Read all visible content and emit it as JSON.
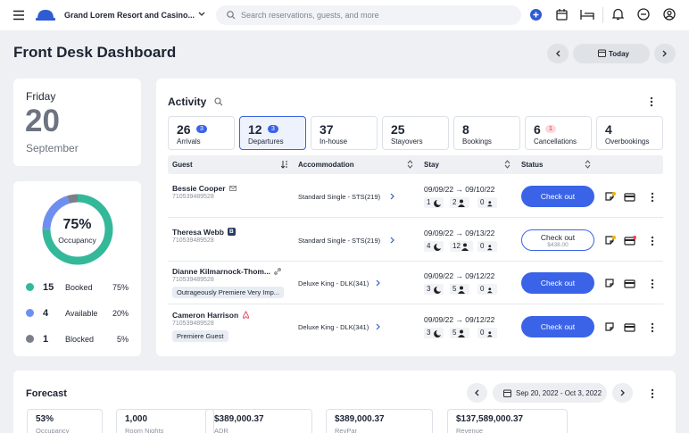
{
  "header": {
    "hotel": "Grand Lorem Resort and Casino...",
    "search_placeholder": "Search reservations, guests, and more"
  },
  "page": {
    "title": "Front Desk Dashboard",
    "today_button": "Today"
  },
  "date_card": {
    "weekday": "Friday",
    "day": "20",
    "month": "September"
  },
  "occupancy": {
    "percent": "75%",
    "label": "Occupancy",
    "legend": [
      {
        "count": 15,
        "label": "Booked",
        "percent": "75%",
        "color": "#34b89a"
      },
      {
        "count": 4,
        "label": "Available",
        "percent": "20%",
        "color": "#6f8ff0"
      },
      {
        "count": 1,
        "label": "Blocked",
        "percent": "5%",
        "color": "#7b7f87"
      }
    ]
  },
  "activity": {
    "title": "Activity",
    "tabs": [
      {
        "count": 26,
        "badge": 3,
        "label": "Arrivals"
      },
      {
        "count": 12,
        "badge": 3,
        "label": "Departures",
        "selected": true
      },
      {
        "count": 37,
        "label": "In-house"
      },
      {
        "count": 25,
        "label": "Stayovers"
      },
      {
        "count": 8,
        "label": "Bookings"
      },
      {
        "count": 6,
        "badge": 1,
        "label": "Cancellations"
      },
      {
        "count": 4,
        "label": "Overbookings"
      }
    ],
    "columns": [
      "Guest",
      "Accommodation",
      "Stay",
      "Status"
    ],
    "rows": [
      {
        "name": "Bessie Cooper",
        "id": "710539489528",
        "accommodation": "Standard Single - STS(219)",
        "stay": "09/09/22 → 09/10/22",
        "nights": 1,
        "adults": 2,
        "children": 0,
        "status": "Check out"
      },
      {
        "name": "Theresa Webb",
        "badge": "B",
        "id": "710539489528",
        "accommodation": "Standard Single - STS(219)",
        "stay": "09/09/22 → 09/13/22",
        "nights": 4,
        "adults": 12,
        "children": 0,
        "status": "Check out",
        "amount": "$438.00"
      },
      {
        "name": "Dianne Kilmarnock-Thom...",
        "id": "710539489528",
        "tag": "Outrageously Premiere Very Imp...",
        "accommodation": "Deluxe King - DLK(341)",
        "stay": "09/09/22 → 09/12/22",
        "nights": 3,
        "adults": 5,
        "children": 0,
        "status": "Check out"
      },
      {
        "name": "Cameron Harrison",
        "id": "710539489528",
        "tag": "Premiere Guest",
        "accommodation": "Deluxe King - DLK(341)",
        "stay": "09/09/22 → 09/12/22",
        "nights": 3,
        "adults": 5,
        "children": 0,
        "status": "Check out"
      }
    ]
  },
  "forecast": {
    "title": "Forecast",
    "range": "Sep 20, 2022 - Oct 3, 2022",
    "metrics": [
      {
        "value": "53%",
        "label": "Occupancy"
      },
      {
        "value": "1,000",
        "label": "Room Nights"
      },
      {
        "value": "$389,000.37",
        "label": "ADR"
      },
      {
        "value": "$389,000.37",
        "label": "RevPar"
      },
      {
        "value": "$137,589,000.37",
        "label": "Revenue"
      }
    ]
  }
}
